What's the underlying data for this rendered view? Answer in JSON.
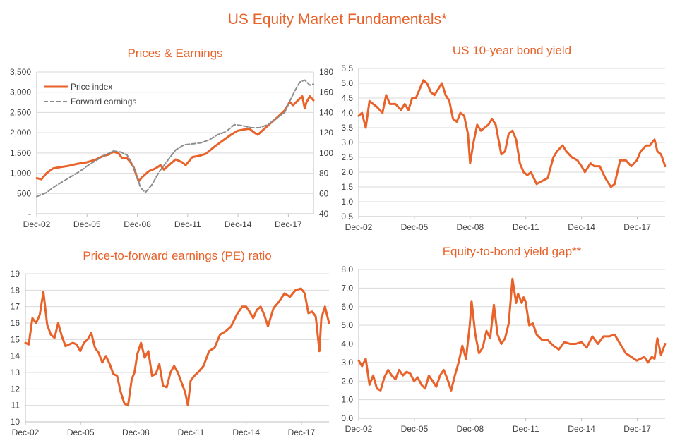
{
  "title": "US Equity Market Fundamentals*",
  "colors": {
    "accent": "#e8622a",
    "secondary": "#8c8c8c",
    "grid": "#d9d9d9",
    "axis_text": "#404040"
  },
  "chart_data": [
    {
      "id": "prices-earnings",
      "type": "line",
      "title": "Prices & Earnings",
      "x_ticks": [
        "Dec-02",
        "Dec-05",
        "Dec-08",
        "Dec-11",
        "Dec-14",
        "Dec-17"
      ],
      "x_range": [
        2002.92,
        2019.42
      ],
      "y_left": {
        "ticks": [
          "-",
          "500",
          "1,000",
          "1,500",
          "2,000",
          "2,500",
          "3,000",
          "3,500"
        ],
        "range": [
          0,
          3500
        ]
      },
      "y_right": {
        "ticks": [
          "40",
          "60",
          "80",
          "100",
          "120",
          "140",
          "160",
          "180"
        ],
        "range": [
          40,
          180
        ]
      },
      "grid": true,
      "legend_position": "top-left",
      "series": [
        {
          "name": "Price index",
          "axis": "left",
          "style": "solid",
          "color": "#e8622a",
          "x": [
            2002.92,
            2003.2,
            2003.5,
            2003.9,
            2004.3,
            2004.8,
            2005.3,
            2005.9,
            2006.4,
            2006.9,
            2007.2,
            2007.5,
            2007.8,
            2008.0,
            2008.3,
            2008.5,
            2008.7,
            2008.85,
            2009.0,
            2009.2,
            2009.6,
            2010.0,
            2010.3,
            2010.5,
            2010.8,
            2011.2,
            2011.6,
            2011.8,
            2012.2,
            2012.6,
            2013.0,
            2013.5,
            2014.0,
            2014.5,
            2014.9,
            2015.3,
            2015.6,
            2015.9,
            2016.1,
            2016.5,
            2016.9,
            2017.3,
            2017.7,
            2018.0,
            2018.2,
            2018.5,
            2018.75,
            2018.9,
            2019.0,
            2019.2,
            2019.42
          ],
          "y": [
            880,
            850,
            1000,
            1120,
            1150,
            1180,
            1230,
            1270,
            1330,
            1430,
            1460,
            1530,
            1490,
            1380,
            1370,
            1280,
            1150,
            960,
            800,
            900,
            1050,
            1120,
            1200,
            1090,
            1200,
            1340,
            1270,
            1200,
            1400,
            1430,
            1480,
            1650,
            1800,
            1950,
            2050,
            2080,
            2100,
            2000,
            1950,
            2100,
            2250,
            2390,
            2550,
            2760,
            2680,
            2800,
            2900,
            2600,
            2750,
            2900,
            2800
          ]
        },
        {
          "name": "Forward earnings",
          "axis": "right",
          "style": "dashed",
          "color": "#8c8c8c",
          "x": [
            2002.92,
            2003.5,
            2004.0,
            2004.5,
            2005.0,
            2005.5,
            2006.0,
            2006.5,
            2007.0,
            2007.5,
            2007.9,
            2008.3,
            2008.6,
            2008.85,
            2009.1,
            2009.4,
            2009.8,
            2010.2,
            2010.7,
            2011.2,
            2011.7,
            2012.2,
            2012.7,
            2013.2,
            2013.7,
            2014.2,
            2014.7,
            2015.2,
            2015.7,
            2016.2,
            2016.7,
            2017.2,
            2017.7,
            2018.0,
            2018.3,
            2018.6,
            2018.9,
            2019.2,
            2019.42
          ],
          "y": [
            57,
            61,
            67,
            72,
            77,
            82,
            88,
            93,
            98,
            102,
            101,
            98,
            90,
            80,
            66,
            61,
            69,
            81,
            92,
            103,
            108,
            109,
            110,
            113,
            118,
            121,
            128,
            127,
            125,
            125,
            128,
            134,
            140,
            151,
            161,
            170,
            172,
            167,
            168
          ]
        }
      ]
    },
    {
      "id": "bond-yield",
      "type": "line",
      "title": "US 10-year bond yield",
      "x_ticks": [
        "Dec-02",
        "Dec-05",
        "Dec-08",
        "Dec-11",
        "Dec-14",
        "Dec-17"
      ],
      "x_range": [
        2002.92,
        2019.42
      ],
      "y_left": {
        "ticks": [
          "0.5",
          "1.0",
          "1.5",
          "2.0",
          "2.5",
          "3.0",
          "3.5",
          "4.0",
          "4.5",
          "5.0",
          "5.5"
        ],
        "range": [
          0.5,
          5.5
        ]
      },
      "grid": true,
      "series": [
        {
          "name": "",
          "axis": "left",
          "style": "solid",
          "color": "#e8622a",
          "x": [
            2002.92,
            2003.1,
            2003.3,
            2003.5,
            2003.7,
            2003.9,
            2004.2,
            2004.4,
            2004.6,
            2004.9,
            2005.2,
            2005.4,
            2005.6,
            2005.8,
            2006.0,
            2006.2,
            2006.4,
            2006.6,
            2006.8,
            2007.0,
            2007.2,
            2007.4,
            2007.6,
            2007.8,
            2008.0,
            2008.2,
            2008.4,
            2008.6,
            2008.8,
            2008.92,
            2009.1,
            2009.3,
            2009.5,
            2009.7,
            2009.9,
            2010.1,
            2010.3,
            2010.6,
            2010.8,
            2011.0,
            2011.2,
            2011.4,
            2011.6,
            2011.8,
            2012.0,
            2012.2,
            2012.5,
            2012.8,
            2013.1,
            2013.4,
            2013.6,
            2013.9,
            2014.1,
            2014.4,
            2014.7,
            2014.92,
            2015.1,
            2015.4,
            2015.6,
            2015.9,
            2016.2,
            2016.5,
            2016.7,
            2017.0,
            2017.3,
            2017.6,
            2017.9,
            2018.1,
            2018.4,
            2018.6,
            2018.85,
            2019.0,
            2019.2,
            2019.42
          ],
          "y": [
            3.9,
            4.0,
            3.5,
            4.4,
            4.3,
            4.2,
            4.0,
            4.6,
            4.3,
            4.3,
            4.1,
            4.3,
            4.1,
            4.5,
            4.5,
            4.8,
            5.1,
            5.0,
            4.7,
            4.6,
            4.8,
            5.0,
            4.6,
            4.4,
            3.8,
            3.7,
            4.0,
            3.9,
            3.3,
            2.3,
            3.0,
            3.6,
            3.4,
            3.5,
            3.6,
            3.8,
            3.6,
            2.6,
            2.7,
            3.3,
            3.4,
            3.1,
            2.3,
            2.0,
            1.9,
            2.0,
            1.6,
            1.7,
            1.8,
            2.5,
            2.7,
            2.9,
            2.7,
            2.5,
            2.4,
            2.2,
            2.0,
            2.3,
            2.2,
            2.2,
            1.8,
            1.5,
            1.6,
            2.4,
            2.4,
            2.2,
            2.4,
            2.7,
            2.9,
            2.9,
            3.1,
            2.7,
            2.6,
            2.2
          ]
        }
      ]
    },
    {
      "id": "pe-ratio",
      "type": "line",
      "title": "Price-to-forward earnings (PE) ratio",
      "x_ticks": [
        "Dec-02",
        "Dec-05",
        "Dec-08",
        "Dec-11",
        "Dec-14",
        "Dec-17"
      ],
      "x_range": [
        2002.92,
        2019.42
      ],
      "y_left": {
        "ticks": [
          "10",
          "11",
          "12",
          "13",
          "14",
          "15",
          "16",
          "17",
          "18",
          "19"
        ],
        "range": [
          10,
          19
        ]
      },
      "grid": true,
      "series": [
        {
          "name": "",
          "axis": "left",
          "style": "solid",
          "color": "#e8622a",
          "x": [
            2002.92,
            2003.1,
            2003.3,
            2003.5,
            2003.7,
            2003.9,
            2004.1,
            2004.3,
            2004.5,
            2004.7,
            2004.9,
            2005.1,
            2005.3,
            2005.5,
            2005.7,
            2005.9,
            2006.1,
            2006.3,
            2006.5,
            2006.7,
            2006.9,
            2007.1,
            2007.3,
            2007.5,
            2007.7,
            2007.9,
            2008.1,
            2008.3,
            2008.5,
            2008.7,
            2008.85,
            2009.0,
            2009.2,
            2009.4,
            2009.6,
            2009.8,
            2010.0,
            2010.2,
            2010.4,
            2010.6,
            2010.8,
            2011.0,
            2011.2,
            2011.4,
            2011.6,
            2011.75,
            2011.9,
            2012.1,
            2012.3,
            2012.6,
            2012.9,
            2013.2,
            2013.5,
            2013.8,
            2014.1,
            2014.4,
            2014.7,
            2014.92,
            2015.1,
            2015.3,
            2015.5,
            2015.7,
            2015.9,
            2016.1,
            2016.4,
            2016.7,
            2017.0,
            2017.3,
            2017.6,
            2017.9,
            2018.1,
            2018.3,
            2018.5,
            2018.7,
            2018.9,
            2019.0,
            2019.2,
            2019.42
          ],
          "y": [
            14.8,
            14.7,
            16.3,
            16.0,
            16.5,
            17.9,
            15.9,
            15.3,
            15.1,
            16.0,
            15.2,
            14.6,
            14.7,
            14.8,
            14.7,
            14.3,
            14.8,
            15.0,
            15.4,
            14.5,
            14.2,
            13.6,
            14.0,
            13.5,
            12.9,
            12.8,
            11.8,
            11.1,
            11.0,
            12.6,
            13.0,
            14.1,
            14.8,
            13.9,
            14.3,
            12.8,
            12.9,
            13.5,
            12.2,
            12.1,
            13.0,
            13.4,
            13.0,
            12.4,
            11.8,
            11.0,
            12.5,
            12.8,
            13.0,
            13.4,
            14.3,
            14.5,
            15.3,
            15.5,
            15.8,
            16.5,
            17.0,
            17.0,
            16.7,
            16.3,
            16.8,
            17.0,
            16.5,
            15.8,
            16.9,
            17.3,
            17.8,
            17.6,
            18.0,
            18.1,
            17.8,
            16.6,
            16.7,
            16.4,
            14.3,
            16.3,
            17.0,
            16.0
          ]
        }
      ]
    },
    {
      "id": "yield-gap",
      "type": "line",
      "title": "Equity-to-bond yield gap**",
      "x_ticks": [
        "Dec-02",
        "Dec-05",
        "Dec-08",
        "Dec-11",
        "Dec-14",
        "Dec-17"
      ],
      "x_range": [
        2002.92,
        2019.42
      ],
      "y_left": {
        "ticks": [
          "0.0",
          "1.0",
          "2.0",
          "3.0",
          "4.0",
          "5.0",
          "6.0",
          "7.0",
          "8.0"
        ],
        "range": [
          0,
          8
        ]
      },
      "grid": true,
      "series": [
        {
          "name": "",
          "axis": "left",
          "style": "solid",
          "color": "#e8622a",
          "x": [
            2002.92,
            2003.1,
            2003.3,
            2003.5,
            2003.7,
            2003.9,
            2004.1,
            2004.3,
            2004.5,
            2004.7,
            2004.9,
            2005.1,
            2005.3,
            2005.5,
            2005.7,
            2005.9,
            2006.1,
            2006.3,
            2006.5,
            2006.7,
            2006.9,
            2007.1,
            2007.3,
            2007.5,
            2007.7,
            2007.9,
            2008.1,
            2008.3,
            2008.5,
            2008.7,
            2008.9,
            2009.0,
            2009.2,
            2009.4,
            2009.6,
            2009.8,
            2010.0,
            2010.2,
            2010.4,
            2010.6,
            2010.8,
            2011.0,
            2011.2,
            2011.4,
            2011.5,
            2011.7,
            2011.8,
            2011.9,
            2012.1,
            2012.3,
            2012.5,
            2012.8,
            2013.1,
            2013.4,
            2013.7,
            2014.0,
            2014.3,
            2014.6,
            2014.92,
            2015.2,
            2015.5,
            2015.8,
            2016.1,
            2016.4,
            2016.7,
            2017.0,
            2017.3,
            2017.6,
            2017.9,
            2018.1,
            2018.3,
            2018.5,
            2018.7,
            2018.85,
            2019.0,
            2019.2,
            2019.42
          ],
          "y": [
            3.1,
            2.8,
            3.2,
            1.8,
            2.3,
            1.6,
            1.5,
            2.2,
            2.6,
            2.3,
            2.1,
            2.6,
            2.3,
            2.5,
            2.4,
            2.0,
            2.2,
            1.8,
            1.6,
            2.3,
            2.0,
            1.7,
            2.3,
            2.6,
            2.1,
            1.5,
            2.3,
            3.0,
            3.9,
            3.2,
            5.0,
            6.3,
            4.5,
            3.5,
            3.8,
            4.7,
            4.3,
            6.1,
            4.5,
            4.0,
            4.3,
            5.1,
            7.5,
            6.2,
            6.7,
            6.2,
            6.5,
            6.3,
            5.0,
            5.1,
            4.5,
            4.2,
            4.2,
            3.9,
            3.7,
            4.1,
            4.0,
            4.0,
            4.1,
            3.8,
            4.4,
            4.0,
            4.4,
            4.4,
            4.5,
            4.0,
            3.5,
            3.3,
            3.1,
            3.2,
            3.3,
            3.0,
            3.3,
            3.2,
            4.3,
            3.4,
            4.0
          ]
        }
      ]
    }
  ]
}
